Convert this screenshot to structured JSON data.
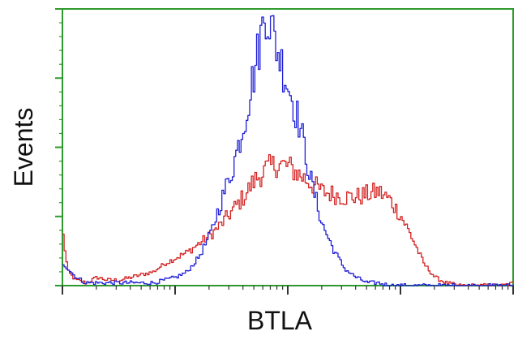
{
  "chart_data": {
    "type": "line",
    "title": "",
    "xlabel": "BTLA",
    "ylabel": "Events",
    "x_scale": "log",
    "xlim": [
      1,
      10000
    ],
    "ylim": [
      0,
      100
    ],
    "grid": false,
    "legend": "none",
    "frame_color": "#2e9a2e",
    "tick_color": "#2e9a2e",
    "series": [
      {
        "color": "#d42020",
        "x": [
          1,
          1.1,
          1.3,
          1.6,
          2,
          2.5,
          3.2,
          4,
          5,
          6.3,
          8,
          10,
          12.6,
          15.8,
          20,
          25,
          31.6,
          39.8,
          50,
          63,
          79,
          100,
          126,
          158,
          200,
          251,
          316,
          398,
          501,
          631,
          794,
          1000,
          1259,
          1585,
          1995,
          2512,
          3162,
          3981,
          5012,
          6310,
          7943,
          10000
        ],
        "values": [
          18,
          5,
          2,
          1,
          3,
          2,
          2,
          3,
          4,
          5,
          8,
          10,
          12,
          15,
          18,
          22,
          27,
          32,
          38,
          42,
          44,
          43,
          40,
          37,
          34,
          33,
          32,
          32,
          33,
          34,
          31,
          25,
          17,
          8,
          3,
          1,
          0,
          0,
          0,
          0,
          0,
          1
        ]
      },
      {
        "color": "#1f1fd8",
        "x": [
          1,
          1.3,
          1.6,
          2,
          2.5,
          3.2,
          4,
          5,
          6.3,
          8,
          10,
          12.6,
          15.8,
          20,
          25,
          31.6,
          39.8,
          50,
          63,
          79,
          100,
          126,
          158,
          200,
          251,
          316,
          398,
          501,
          631,
          794,
          1000,
          1259,
          1585,
          2000,
          10000
        ],
        "values": [
          8,
          3,
          1,
          1,
          1,
          1,
          1,
          1,
          1,
          2,
          3,
          5,
          10,
          18,
          30,
          42,
          58,
          78,
          100,
          86,
          72,
          58,
          38,
          22,
          13,
          6,
          3,
          1,
          1,
          0,
          0,
          0,
          0,
          0,
          0
        ]
      }
    ]
  }
}
